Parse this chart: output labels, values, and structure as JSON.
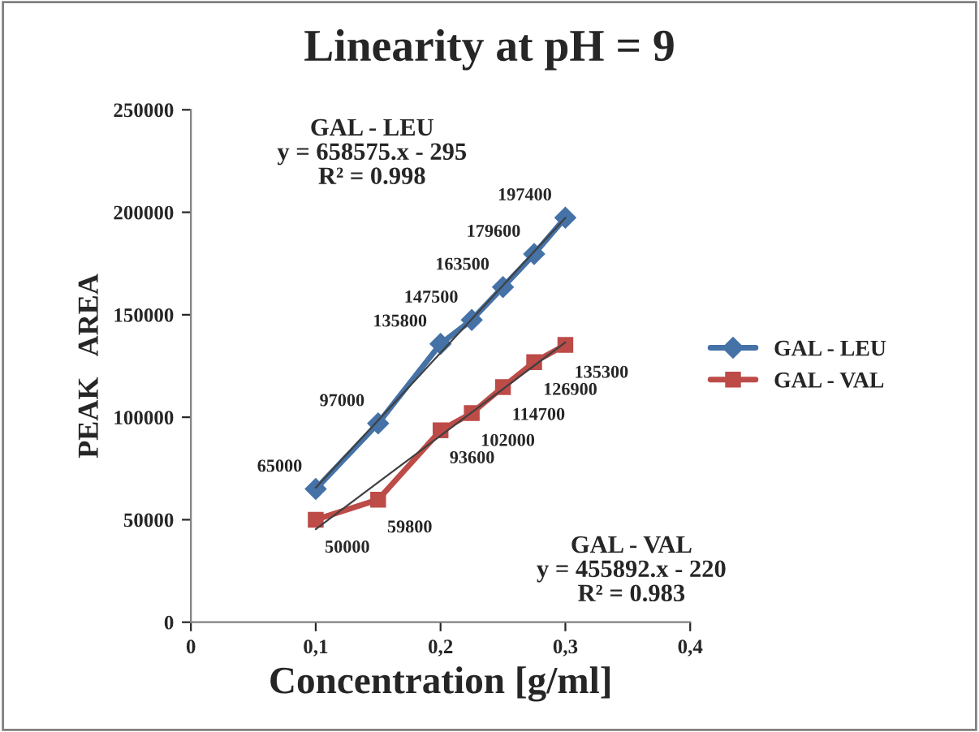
{
  "chart_data": {
    "type": "line",
    "title": "Linearity at pH = 9",
    "xlabel": "Concentration [g/ml]",
    "ylabel": "PEAK   AREA",
    "x": [
      0.1,
      0.15,
      0.2,
      0.225,
      0.25,
      0.275,
      0.3
    ],
    "series": [
      {
        "name": "GAL - LEU",
        "color": "#4572a7",
        "marker": "diamond",
        "values": [
          65000,
          97000,
          135800,
          147500,
          163500,
          179600,
          197400
        ],
        "value_labels": [
          "65000",
          "97000",
          "135800",
          "147500",
          "163500",
          "179600",
          "197400"
        ]
      },
      {
        "name": "GAL - VAL",
        "color": "#bd4b48",
        "marker": "square",
        "values": [
          50000,
          59800,
          93600,
          102000,
          114700,
          126900,
          135300
        ],
        "value_labels": [
          "50000",
          "59800",
          "93600",
          "102000",
          "114700",
          "126900",
          "135300"
        ]
      },
      {
        "type": "line",
        "color": "#404040",
        "marker": "none",
        "values": [
          65600,
          98500,
          131400,
          147900,
          164300,
          180800,
          197300
        ]
      },
      {
        "type": "line",
        "color": "#404040",
        "marker": "none",
        "values": [
          45400,
          68200,
          91000,
          102400,
          113800,
          125200,
          136500
        ]
      }
    ],
    "xlim": [
      0,
      0.4
    ],
    "ylim": [
      0,
      250000
    ],
    "xticks": [
      0,
      {
        "value": 0.1,
        "label": "0,1"
      },
      {
        "value": 0.2,
        "label": "0,2"
      },
      {
        "value": 0.3,
        "label": "0,3"
      },
      {
        "value": 0.4,
        "label": "0,4"
      }
    ],
    "yticks": [
      0,
      50000,
      100000,
      150000,
      200000,
      250000
    ],
    "annotations": [
      "GAL - LEU\ny = 658575.x - 295\nR² = 0.998",
      "GAL - VAL\ny = 455892.x - 220\nR² = 0.983"
    ],
    "legend": "right",
    "grid": false,
    "line_style": "solid"
  }
}
